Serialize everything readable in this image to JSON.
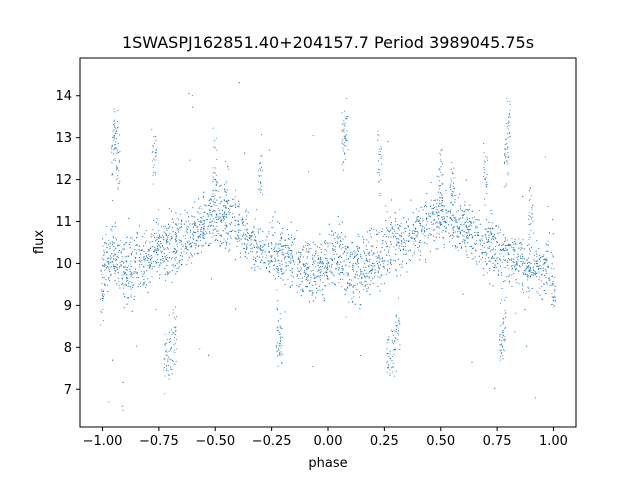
{
  "chart_data": {
    "type": "scatter",
    "title": "1SWASPJ162851.40+204157.7 Period 3989045.75s",
    "xlabel": "phase",
    "ylabel": "flux",
    "xlim": [
      -1.1,
      1.1
    ],
    "ylim": [
      6.1,
      14.9
    ],
    "xticks": [
      -1.0,
      -0.75,
      -0.5,
      -0.25,
      0.0,
      0.25,
      0.5,
      0.75,
      1.0
    ],
    "xtick_labels": [
      "−1.00",
      "−0.75",
      "−0.50",
      "−0.25",
      "0.00",
      "0.25",
      "0.50",
      "0.75",
      "1.00"
    ],
    "yticks": [
      7,
      8,
      9,
      10,
      11,
      12,
      13,
      14
    ],
    "ytick_labels": [
      "7",
      "8",
      "9",
      "10",
      "11",
      "12",
      "13",
      "14"
    ],
    "grid": false,
    "legend": "none",
    "series": [
      {
        "color": "#1f77b4",
        "marker_size_description": "tiny dots",
        "profile_x": [
          -1.0,
          -0.95,
          -0.9,
          -0.85,
          -0.8,
          -0.75,
          -0.7,
          -0.65,
          -0.6,
          -0.55,
          -0.5,
          -0.45,
          -0.4,
          -0.35,
          -0.3,
          -0.25,
          -0.2,
          -0.15,
          -0.1,
          -0.05,
          0.0,
          0.05,
          0.1,
          0.15,
          0.2,
          0.25,
          0.3,
          0.35,
          0.4,
          0.45,
          0.5,
          0.55,
          0.6,
          0.65,
          0.7,
          0.75,
          0.8,
          0.85,
          0.9,
          0.95,
          1.0
        ],
        "profile_median": [
          10.0,
          10.2,
          9.8,
          9.9,
          10.1,
          10.3,
          10.4,
          10.5,
          10.7,
          11.0,
          11.1,
          11.0,
          10.9,
          10.6,
          10.4,
          10.3,
          10.2,
          10.0,
          9.9,
          9.8,
          10.0,
          10.2,
          9.8,
          9.9,
          10.1,
          10.3,
          10.4,
          10.5,
          10.7,
          11.0,
          11.1,
          11.0,
          10.9,
          10.6,
          10.4,
          10.3,
          10.2,
          10.0,
          9.9,
          9.8,
          10.0
        ],
        "profile_spread": [
          0.6,
          0.7,
          0.8,
          0.7,
          0.6,
          0.7,
          0.8,
          0.6,
          0.6,
          0.6,
          0.6,
          0.6,
          0.6,
          0.6,
          0.6,
          0.6,
          0.7,
          0.6,
          0.6,
          0.7,
          0.6,
          0.7,
          0.8,
          0.7,
          0.6,
          0.7,
          0.8,
          0.6,
          0.6,
          0.6,
          0.6,
          0.6,
          0.6,
          0.6,
          0.6,
          0.6,
          0.7,
          0.6,
          0.6,
          0.7,
          0.6
        ],
        "points_sample": [
          [
            -0.95,
            12.7
          ],
          [
            -0.94,
            13.1
          ],
          [
            -0.93,
            12.4
          ],
          [
            -0.72,
            7.7
          ],
          [
            -0.7,
            7.9
          ],
          [
            -0.68,
            8.3
          ],
          [
            -0.22,
            8.3
          ],
          [
            -0.21,
            8.1
          ],
          [
            0.07,
            12.9
          ],
          [
            0.08,
            13.2
          ],
          [
            0.27,
            7.8
          ],
          [
            0.29,
            8.0
          ],
          [
            0.31,
            8.4
          ],
          [
            0.77,
            8.2
          ],
          [
            0.78,
            8.4
          ],
          [
            0.79,
            12.6
          ],
          [
            0.8,
            13.3
          ],
          [
            0.9,
            11.4
          ],
          [
            -0.5,
            12.2
          ],
          [
            -0.45,
            11.8
          ],
          [
            0.5,
            12.1
          ],
          [
            0.55,
            11.9
          ],
          [
            -1.0,
            9.4
          ],
          [
            1.0,
            9.3
          ],
          [
            -0.3,
            12.0
          ],
          [
            0.7,
            12.0
          ],
          [
            -0.77,
            12.4
          ],
          [
            0.23,
            12.5
          ]
        ]
      }
    ]
  }
}
